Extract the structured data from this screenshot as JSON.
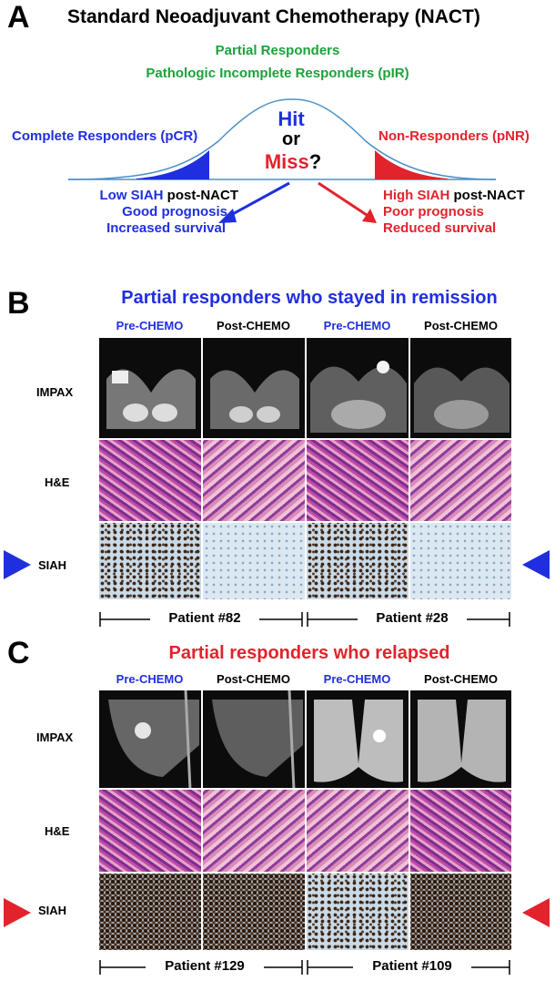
{
  "panel_a": {
    "letter": "A",
    "title": "Standard Neoadjuvant Chemotherapy (NACT)",
    "partial_responders": "Partial Responders",
    "pir": "Pathologic Incomplete Responders (pIR)",
    "complete_responders": "Complete Responders (pCR)",
    "non_responders": "Non-Responders (pNR)",
    "hit": "Hit",
    "or": "or",
    "miss": "Miss",
    "question": "?",
    "left_note": {
      "line1_colored": "Low SIAH",
      "line1_rest": " post-NACT",
      "line2": "Good prognosis",
      "line3": "Increased survival"
    },
    "right_note": {
      "line1_colored": "High SIAH",
      "line1_rest": " post-NACT",
      "line2": "Poor prognosis",
      "line3": "Reduced survival"
    },
    "colors": {
      "blue": "#1f2fe0",
      "red": "#e2232c",
      "green": "#1aa33a",
      "curve": "#4a90c8"
    }
  },
  "panel_b": {
    "letter": "B",
    "title": "Partial responders who stayed in remission",
    "columns": [
      "Pre-CHEMO",
      "Post-CHEMO",
      "Pre-CHEMO",
      "Post-CHEMO"
    ],
    "rows": [
      "IMPAX",
      "H&E",
      "SIAH"
    ],
    "patients": [
      "Patient #82",
      "Patient #28"
    ]
  },
  "panel_c": {
    "letter": "C",
    "title": "Partial responders who relapsed",
    "columns": [
      "Pre-CHEMO",
      "Post-CHEMO",
      "Pre-CHEMO",
      "Post-CHEMO"
    ],
    "rows": [
      "IMPAX",
      "H&E",
      "SIAH"
    ],
    "patients": [
      "Patient #129",
      "Patient #109"
    ]
  }
}
